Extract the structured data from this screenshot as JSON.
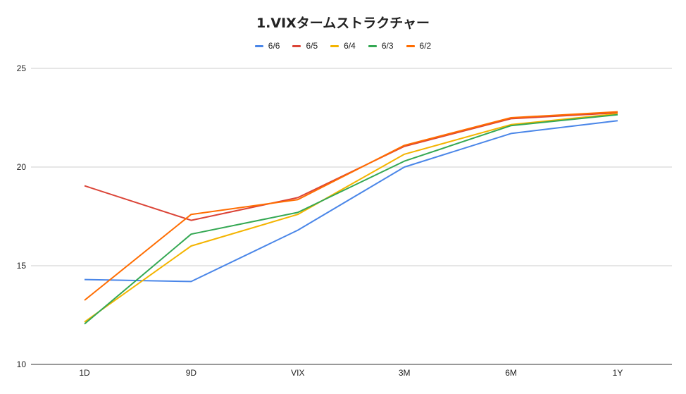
{
  "chart_data": {
    "type": "line",
    "title": "1.VIXタームストラクチャー",
    "xlabel": "",
    "ylabel": "",
    "categories": [
      "1D",
      "9D",
      "VIX",
      "3M",
      "6M",
      "1Y"
    ],
    "ylim": [
      10,
      25
    ],
    "yticks": [
      10,
      15,
      20,
      25
    ],
    "grid": true,
    "legend_position": "top-center",
    "series": [
      {
        "name": "6/6",
        "color": "#4A86E8",
        "values": [
          14.3,
          14.2,
          16.8,
          20.0,
          21.7,
          22.35
        ]
      },
      {
        "name": "6/5",
        "color": "#DB4437",
        "values": [
          19.05,
          17.3,
          18.45,
          21.05,
          22.45,
          22.75
        ]
      },
      {
        "name": "6/4",
        "color": "#F4B400",
        "values": [
          12.15,
          16.0,
          17.6,
          20.65,
          22.15,
          22.7
        ]
      },
      {
        "name": "6/3",
        "color": "#34A853",
        "values": [
          12.05,
          16.6,
          17.7,
          20.3,
          22.1,
          22.65
        ]
      },
      {
        "name": "6/2",
        "color": "#FF6D01",
        "values": [
          13.25,
          17.6,
          18.35,
          21.1,
          22.5,
          22.8
        ]
      }
    ]
  }
}
